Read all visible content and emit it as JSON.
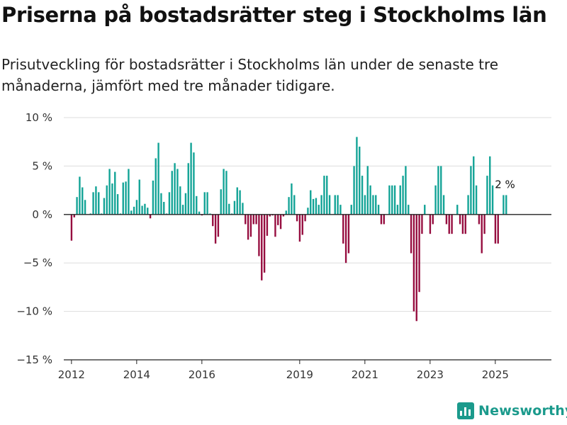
{
  "title": "Priserna på bostadsrätter steg i Stockholms län",
  "subtitle": "Prisutveckling för bostadsrätter i Stockholms län under de senaste tre månaderna, jämfört med tre månader tidigare.",
  "brand": "Newsworthy",
  "colors": {
    "positive": "#12a396",
    "negative": "#960d3f",
    "grid": "#dddddd",
    "axis": "#222222",
    "brand": "#1b9a8c"
  },
  "chart_data": {
    "type": "bar",
    "title": "Priserna på bostadsrätter steg i Stockholms län",
    "subtitle": "Prisutveckling för bostadsrätter i Stockholms län under de senaste tre månaderna, jämfört med tre månader tidigare.",
    "xlabel": "",
    "ylabel": "",
    "unit": "%",
    "x_start": "2012-01",
    "frequency": "monthly",
    "ylim": [
      -15,
      10
    ],
    "yticks": [
      10,
      5,
      0,
      -5,
      -10,
      -15
    ],
    "ytick_labels": [
      "10 %",
      "5 %",
      "0 %",
      "−5 %",
      "−10 %",
      "−15 %"
    ],
    "xticks": [
      "2012",
      "2014",
      "2016",
      "2019",
      "2021",
      "2023",
      "2025"
    ],
    "grid": true,
    "last_label": "2 %",
    "values": [
      -2.7,
      -0.3,
      1.8,
      3.9,
      2.8,
      1.5,
      0.0,
      0.1,
      2.3,
      2.9,
      2.3,
      0.1,
      1.7,
      3.0,
      4.7,
      3.2,
      4.4,
      2.1,
      0.1,
      3.3,
      3.4,
      4.7,
      0.4,
      0.8,
      1.5,
      3.6,
      0.9,
      1.1,
      0.7,
      -0.4,
      3.5,
      5.8,
      7.4,
      2.2,
      1.3,
      0.1,
      2.3,
      4.5,
      5.3,
      4.7,
      2.9,
      1.0,
      2.2,
      5.3,
      7.4,
      6.4,
      1.9,
      0.3,
      -0.1,
      2.3,
      2.3,
      0.1,
      -1.2,
      -3.0,
      -2.3,
      2.6,
      4.7,
      4.5,
      1.1,
      0.1,
      1.4,
      2.8,
      2.5,
      1.2,
      -1.0,
      -2.6,
      -2.3,
      -1.0,
      -1.0,
      -4.3,
      -6.8,
      -6.0,
      -2.2,
      -0.2,
      -0.1,
      -2.3,
      -1.1,
      -1.5,
      -0.2,
      0.4,
      1.8,
      3.2,
      2.0,
      -0.7,
      -2.8,
      -2.1,
      -0.7,
      0.7,
      2.5,
      1.6,
      1.7,
      1.0,
      2.0,
      4.0,
      4.0,
      2.0,
      0.0,
      2.0,
      2.0,
      1.0,
      -3.0,
      -5.0,
      -4.0,
      1.0,
      5.0,
      8.0,
      7.0,
      4.0,
      2.0,
      5.0,
      3.0,
      2.0,
      2.0,
      1.0,
      -1.0,
      -1.0,
      0.0,
      3.0,
      3.0,
      3.0,
      1.0,
      3.0,
      4.0,
      5.0,
      1.0,
      -4.0,
      -10.0,
      -11.0,
      -8.0,
      -2.0,
      1.0,
      0.0,
      -2.0,
      -1.0,
      3.0,
      5.0,
      5.0,
      2.0,
      -1.0,
      -2.0,
      -2.0,
      0.0,
      1.0,
      -1.0,
      -2.0,
      -2.0,
      2.0,
      5.0,
      6.0,
      3.0,
      -1.0,
      -4.0,
      -2.0,
      4.0,
      6.0,
      3.0,
      -3.0,
      -3.0,
      0.0,
      2.0,
      2.0
    ]
  }
}
